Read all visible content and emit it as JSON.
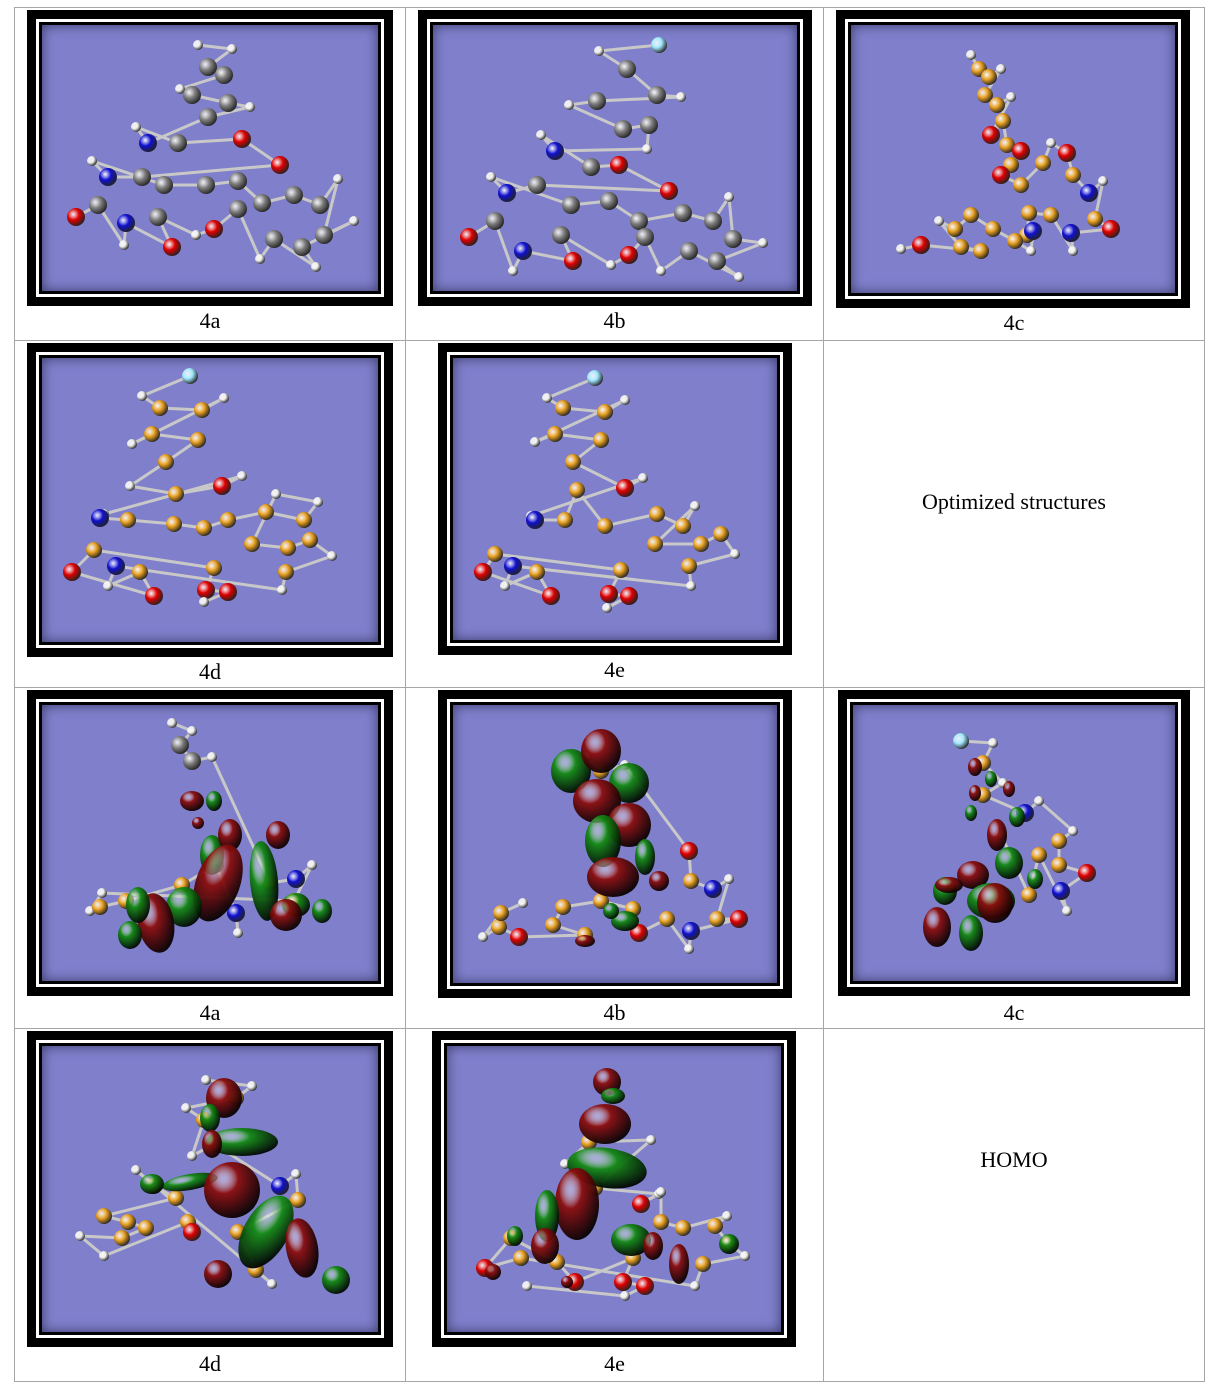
{
  "optimized": {
    "caption": "Optimized structures",
    "labels": [
      "4a",
      "4b",
      "4c",
      "4d",
      "4e"
    ]
  },
  "homo": {
    "caption": "HOMO",
    "labels": [
      "4a",
      "4b",
      "4c",
      "4d",
      "4e"
    ]
  },
  "colors": {
    "background": "#7f7fcc",
    "carbon_gray": "#808080",
    "carbon_orange": "#e8a020",
    "oxygen": "#e00000",
    "nitrogen": "#1010d0",
    "hydrogen": "#f0f0f0",
    "fluorine": "#a0e8ff",
    "orbital_positive": "#8b0d0d",
    "orbital_negative": "#138a13"
  }
}
